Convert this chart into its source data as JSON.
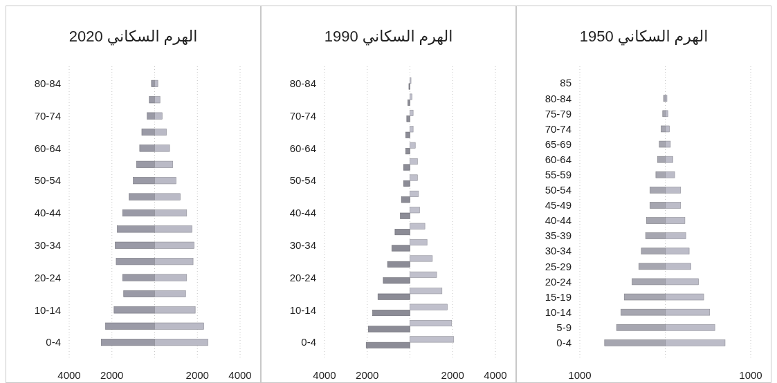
{
  "chart_data": [
    {
      "type": "bar",
      "orientation": "horizontal",
      "stacked": true,
      "title": "الهرم السكاني 2020",
      "grid": "x",
      "categories": [
        "80-84",
        null,
        "70-74",
        null,
        "60-64",
        null,
        "50-54",
        null,
        "40-44",
        null,
        "30-34",
        null,
        "20-24",
        null,
        "10-14",
        null,
        "0-4"
      ],
      "xlim": [
        -4000,
        4000
      ],
      "xticks": [
        {
          "value": -4000,
          "label": "4000"
        },
        {
          "value": -2000,
          "label": "2000"
        },
        {
          "value": 0,
          "label": null
        },
        2000,
        4000
      ],
      "series": [
        {
          "color": "#9a9aa6",
          "values": [
            -150,
            -250,
            -350,
            -600,
            -700,
            -850,
            -1000,
            -1200,
            -1500,
            -1750,
            -1850,
            -1800,
            -1500,
            -1450,
            -1900,
            -2300,
            -2500
          ]
        },
        {
          "color": "#babac6",
          "values": [
            150,
            250,
            350,
            550,
            700,
            850,
            1000,
            1200,
            1500,
            1750,
            1850,
            1800,
            1500,
            1450,
            1900,
            2300,
            2500
          ]
        }
      ]
    },
    {
      "type": "bar",
      "orientation": "horizontal",
      "stacked": false,
      "title": "الهرم السكاني 1990",
      "grid": "x",
      "categories": [
        "80-84",
        null,
        "70-74",
        null,
        "60-64",
        null,
        "50-54",
        null,
        "40-44",
        null,
        "30-34",
        null,
        "20-24",
        null,
        "10-14",
        null,
        "0-4"
      ],
      "xlim": [
        -4000,
        4000
      ],
      "xticks": [
        {
          "value": -4000,
          "label": "4000"
        },
        {
          "value": -2000,
          "label": "2000"
        },
        {
          "value": 0,
          "label": null
        },
        2000,
        4000
      ],
      "series": [
        {
          "color": "#8c8c96",
          "values": [
            -50,
            -100,
            -150,
            -200,
            -200,
            -300,
            -300,
            -400,
            -450,
            -700,
            -850,
            -1050,
            -1250,
            -1500,
            -1750,
            -1950,
            -2050
          ]
        },
        {
          "color": "#c0c0cc",
          "values": [
            50,
            100,
            150,
            150,
            250,
            350,
            350,
            400,
            450,
            700,
            800,
            1050,
            1250,
            1500,
            1750,
            1950,
            2050
          ]
        }
      ]
    },
    {
      "type": "bar",
      "orientation": "horizontal",
      "stacked": true,
      "title": "الهرم السكاني 1950",
      "grid": "x",
      "categories": [
        "85",
        "80-84",
        "75-79",
        "70-74",
        "65-69",
        "60-64",
        "55-59",
        "50-54",
        "45-49",
        "40-44",
        "35-39",
        "30-34",
        "25-29",
        "20-24",
        "15-19",
        "10-14",
        "5-9",
        "0-4"
      ],
      "xlim": [
        -1000,
        1000
      ],
      "xticks": [
        {
          "value": -1000,
          "label": "1000"
        },
        {
          "value": 0,
          "label": null
        },
        1000
      ],
      "series": [
        {
          "color": "#a6a6b0",
          "values": [
            null,
            -20,
            -30,
            -50,
            -70,
            -90,
            -110,
            -180,
            -180,
            -220,
            -230,
            -280,
            -310,
            -390,
            -480,
            -520,
            -570,
            -710
          ]
        },
        {
          "color": "#bcbcc8",
          "values": [
            null,
            20,
            30,
            50,
            60,
            90,
            110,
            180,
            180,
            230,
            240,
            280,
            300,
            390,
            450,
            520,
            580,
            700
          ]
        }
      ]
    }
  ]
}
